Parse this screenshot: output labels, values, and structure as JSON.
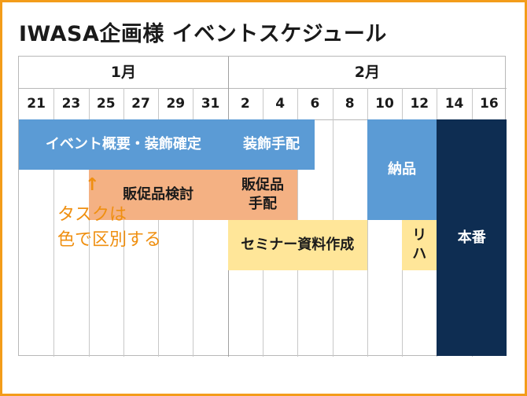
{
  "title": "IWASA企画様 イベントスケジュール",
  "months": [
    {
      "label": "1月",
      "startCol": 0,
      "span": 6
    },
    {
      "label": "2月",
      "startCol": 6,
      "span": 8
    }
  ],
  "days": [
    "21",
    "23",
    "25",
    "27",
    "29",
    "31",
    "2",
    "4",
    "6",
    "8",
    "10",
    "12",
    "14",
    "16"
  ],
  "tasks": [
    {
      "id": "overview",
      "label": "イベント概要・装飾確定",
      "start": 0,
      "end": 6,
      "rowStart": 0,
      "rowEnd": 1,
      "bg": "#5b9bd5",
      "fg": "#ffffff"
    },
    {
      "id": "decoration",
      "label": "装飾手配",
      "start": 6,
      "end": 8.5,
      "rowStart": 0,
      "rowEnd": 1,
      "bg": "#5b9bd5",
      "fg": "#ffffff"
    },
    {
      "id": "delivery",
      "label": "納品",
      "start": 10,
      "end": 12,
      "rowStart": 0,
      "rowEnd": 2,
      "bg": "#5b9bd5",
      "fg": "#ffffff"
    },
    {
      "id": "showtime",
      "label": "本番",
      "start": 12,
      "end": 14,
      "rowStart": 0,
      "rowEnd": 5,
      "bg": "#0e2d52",
      "fg": "#ffffff"
    },
    {
      "id": "promo-review",
      "label": "販促品検討",
      "start": 2,
      "end": 6,
      "rowStart": 1,
      "rowEnd": 2,
      "bg": "#f4b183",
      "fg": "#1a1a1a"
    },
    {
      "id": "promo-order",
      "label": "販促品\n手配",
      "start": 6,
      "end": 8,
      "rowStart": 1,
      "rowEnd": 2,
      "bg": "#f4b183",
      "fg": "#1a1a1a"
    },
    {
      "id": "seminar",
      "label": "セミナー資料作成",
      "start": 6,
      "end": 10,
      "rowStart": 2,
      "rowEnd": 3,
      "bg": "#ffe699",
      "fg": "#1a1a1a"
    },
    {
      "id": "rehearsal",
      "label": "リ\nハ",
      "start": 11,
      "end": 12,
      "rowStart": 2,
      "rowEnd": 3,
      "bg": "#ffe699",
      "fg": "#1a1a1a"
    }
  ],
  "note": {
    "arrow": "↑",
    "line1": "タスクは",
    "line2": "色で区別する"
  },
  "colors": {
    "frame": "#f39c1a",
    "note": "#ef8f10"
  }
}
